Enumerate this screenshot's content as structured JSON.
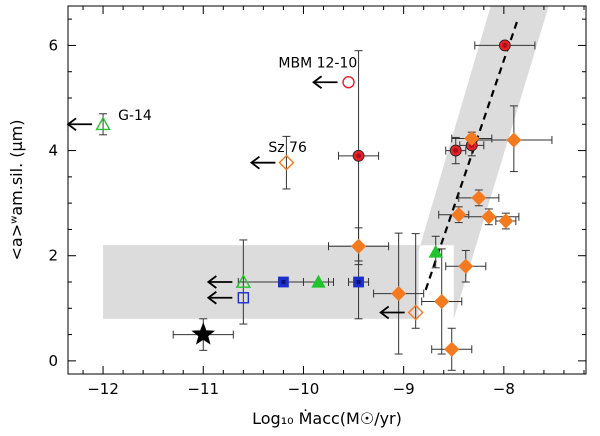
{
  "chart_data": {
    "type": "scatter",
    "xlabel": "Log₁₀ Ṁacc(M☉/yr)",
    "ylabel": "<a>ʷam.sil. (μm)",
    "xlim": [
      -12.35,
      -7.18
    ],
    "ylim": [
      -0.25,
      6.75
    ],
    "xticks": [
      -12,
      -11,
      -10,
      -9,
      -8
    ],
    "xtick_labels": [
      "−12",
      "−11",
      "−10",
      "−9",
      "−8"
    ],
    "yticks": [
      0,
      2,
      4,
      6
    ],
    "ytick_labels": [
      "0",
      "2",
      "4",
      "6"
    ],
    "annotations": [
      {
        "text": "MBM 12-10",
        "x": -10.25,
        "y": 5.58
      },
      {
        "text": "G-14",
        "x": -11.85,
        "y": 4.58
      },
      {
        "text": "Sz 76",
        "x": -10.35,
        "y": 3.97
      }
    ],
    "shaded_band": {
      "horizontal": {
        "x": [
          -12.0,
          -8.85
        ],
        "y": [
          0.8,
          2.2
        ]
      },
      "diagonal_polygon": [
        [
          -9.05,
          0.8
        ],
        [
          -8.1,
          6.95
        ],
        [
          -7.52,
          6.95
        ],
        [
          -8.5,
          0.8
        ],
        [
          -8.5,
          2.2
        ],
        [
          -9.05,
          2.2
        ]
      ]
    },
    "fit_line": {
      "style": "dashed",
      "points": [
        [
          -8.78,
          1.35
        ],
        [
          -7.86,
          6.5
        ]
      ]
    },
    "series": [
      {
        "name": "red circles",
        "marker": "circle",
        "filled": true,
        "color": "#e8202a",
        "points": [
          {
            "x": -7.99,
            "y": 6.0,
            "xerr": [
              0.3,
              0.3
            ],
            "yerr": [
              0.0,
              0.0
            ]
          },
          {
            "x": -9.45,
            "y": 3.9,
            "xerr": [
              0.2,
              0.2
            ],
            "yerr": [
              2.0,
              2.0
            ]
          },
          {
            "x": -8.48,
            "y": 4.0,
            "xerr": [
              0.1,
              0.1
            ],
            "yerr": [
              0.25,
              0.25
            ]
          },
          {
            "x": -8.32,
            "y": 4.1,
            "xerr": [
              0.12,
              0.12
            ],
            "yerr": [
              0.2,
              0.2
            ]
          }
        ]
      },
      {
        "name": "red open circle (MBM 12-10)",
        "marker": "circle",
        "filled": false,
        "color": "#e8202a",
        "points": [
          {
            "x": -9.55,
            "y": 5.3,
            "xerr": [
              0.0,
              0.0
            ],
            "yerr": [
              0.0,
              0.0
            ],
            "upper_limit": true
          }
        ]
      },
      {
        "name": "orange diamonds",
        "marker": "diamond",
        "filled": true,
        "color": "#f47a1f",
        "points": [
          {
            "x": -7.9,
            "y": 4.2,
            "xerr": [
              0.42,
              0.38
            ],
            "yerr": [
              0.6,
              0.65
            ]
          },
          {
            "x": -8.32,
            "y": 4.23,
            "xerr": [
              0.2,
              0.2
            ],
            "yerr": [
              0.12,
              0.12
            ]
          },
          {
            "x": -8.25,
            "y": 3.1,
            "xerr": [
              0.2,
              0.2
            ],
            "yerr": [
              0.15,
              0.15
            ]
          },
          {
            "x": -8.45,
            "y": 2.78,
            "xerr": [
              0.2,
              0.1
            ],
            "yerr": [
              0.15,
              0.15
            ]
          },
          {
            "x": -8.15,
            "y": 2.74,
            "xerr": [
              0.3,
              0.3
            ],
            "yerr": [
              0.15,
              0.15
            ]
          },
          {
            "x": -7.98,
            "y": 2.66,
            "xerr": [
              0.1,
              0.1
            ],
            "yerr": [
              0.15,
              0.15
            ]
          },
          {
            "x": -9.45,
            "y": 2.18,
            "xerr": [
              0.3,
              0.3
            ],
            "yerr": [
              0.35,
              0.35
            ]
          },
          {
            "x": -8.38,
            "y": 1.8,
            "xerr": [
              0.2,
              0.2
            ],
            "yerr": [
              0.3,
              0.3
            ]
          },
          {
            "x": -9.05,
            "y": 1.28,
            "xerr": [
              0.25,
              0.25
            ],
            "yerr": [
              1.15,
              1.15
            ]
          },
          {
            "x": -8.62,
            "y": 1.13,
            "xerr": [
              0.2,
              0.2
            ],
            "yerr": [
              1.0,
              1.0
            ]
          },
          {
            "x": -8.52,
            "y": 0.22,
            "xerr": [
              0.2,
              0.2
            ],
            "yerr": [
              0.4,
              0.4
            ]
          }
        ]
      },
      {
        "name": "orange open diamonds",
        "marker": "diamond",
        "filled": false,
        "color": "#f47a1f",
        "points": [
          {
            "x": -10.17,
            "y": 3.77,
            "xerr": [
              0.0,
              0.0
            ],
            "yerr": [
              0.5,
              0.5
            ],
            "upper_limit": true
          },
          {
            "x": -8.88,
            "y": 0.92,
            "xerr": [
              0.0,
              0.0
            ],
            "yerr": [
              0.3,
              1.5
            ],
            "upper_limit": true
          }
        ]
      },
      {
        "name": "green triangles",
        "marker": "triangle",
        "filled": true,
        "color": "#22c42e",
        "points": [
          {
            "x": -9.85,
            "y": 1.5,
            "xerr": [
              0.15,
              0.15
            ],
            "yerr": [
              0.0,
              0.0
            ]
          },
          {
            "x": -8.68,
            "y": 2.07,
            "xerr": [
              0.0,
              0.0
            ],
            "yerr": [
              0.3,
              0.3
            ]
          }
        ]
      },
      {
        "name": "green open triangles",
        "marker": "triangle",
        "filled": false,
        "color": "#22c42e",
        "points": [
          {
            "x": -12.0,
            "y": 4.5,
            "xerr": [
              0.0,
              0.0
            ],
            "yerr": [
              0.2,
              0.2
            ],
            "upper_limit": true
          },
          {
            "x": -10.6,
            "y": 1.5,
            "xerr": [
              0.0,
              0.0
            ],
            "yerr": [
              0.8,
              0.8
            ],
            "upper_limit": true
          }
        ]
      },
      {
        "name": "blue squares",
        "marker": "square",
        "filled": true,
        "color": "#1c2fcc",
        "points": [
          {
            "x": -10.2,
            "y": 1.5,
            "xerr": [
              0.45,
              0.45
            ],
            "yerr": [
              0.0,
              0.0
            ]
          },
          {
            "x": -9.45,
            "y": 1.5,
            "xerr": [
              0.1,
              0.1
            ],
            "yerr": [
              0.7,
              0.7
            ]
          }
        ]
      },
      {
        "name": "blue open squares",
        "marker": "square",
        "filled": false,
        "color": "#1c2fcc",
        "points": [
          {
            "x": -10.6,
            "y": 1.2,
            "xerr": [
              0.0,
              0.0
            ],
            "yerr": [
              0.0,
              0.0
            ],
            "upper_limit": true
          }
        ]
      },
      {
        "name": "black star",
        "marker": "star",
        "filled": true,
        "color": "#000000",
        "points": [
          {
            "x": -11.0,
            "y": 0.5,
            "xerr": [
              0.3,
              0.3
            ],
            "yerr": [
              0.3,
              0.3
            ]
          }
        ]
      }
    ]
  }
}
